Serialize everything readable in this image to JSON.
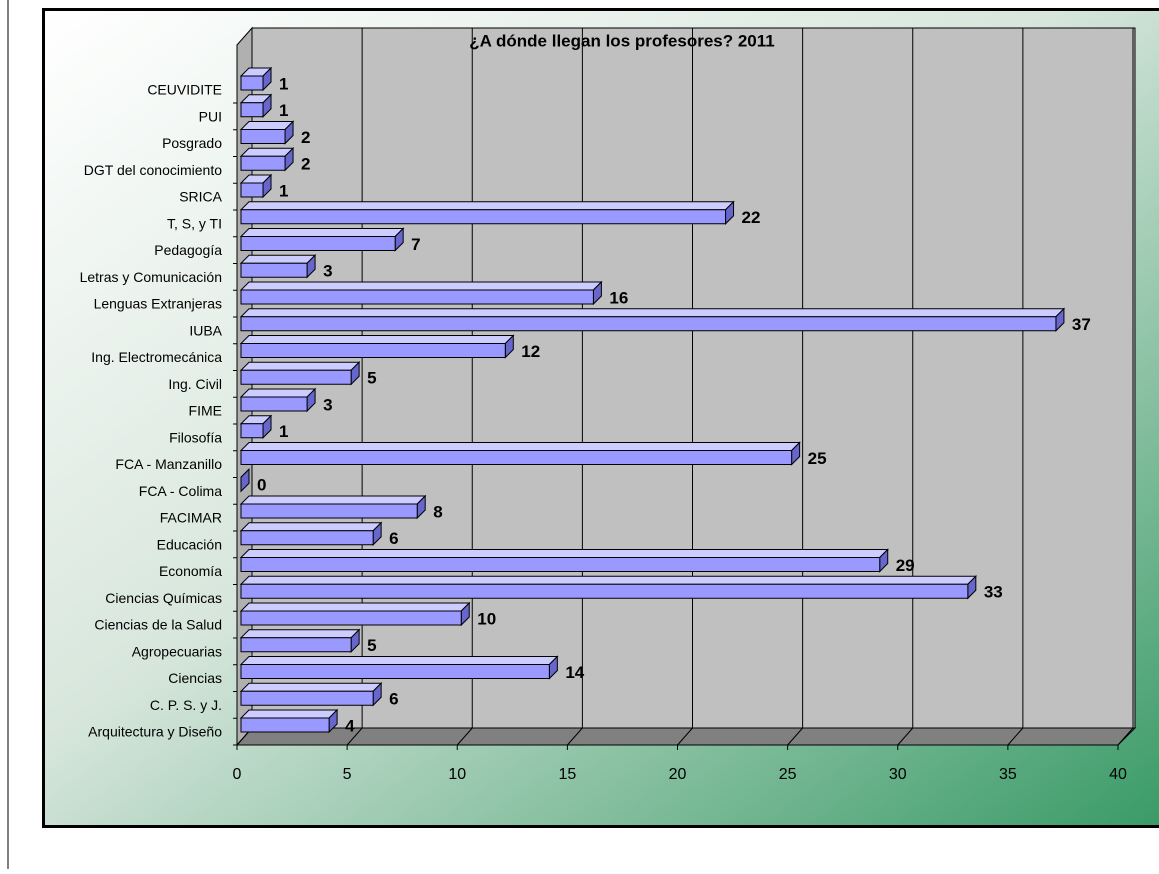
{
  "chart_data": {
    "type": "bar3d_horizontal",
    "title": "¿A dónde llegan los profesores? 2011",
    "categories": [
      "Arquitectura y Diseño",
      "C. P. S. y J.",
      "Ciencias",
      "Agropecuarias",
      "Ciencias de la Salud",
      "Ciencias Químicas",
      "Economía",
      "Educación",
      "FACIMAR",
      "FCA - Colima",
      "FCA - Manzanillo",
      "Filosofía",
      "FIME",
      "Ing. Civil",
      "Ing. Electromecánica",
      "IUBA",
      "Lenguas Extranjeras",
      "Letras y Comunicación",
      "Pedagogía",
      "T, S, y TI",
      "SRICA",
      "DGT del conocimiento",
      "Posgrado",
      "PUI",
      "CEUVIDITE"
    ],
    "values": [
      4,
      6,
      14,
      5,
      10,
      33,
      29,
      6,
      8,
      0,
      25,
      1,
      3,
      5,
      12,
      37,
      16,
      3,
      7,
      22,
      1,
      2,
      2,
      1,
      1
    ],
    "color": "#9999ff",
    "xlim": [
      0,
      40
    ],
    "xticks": [
      0,
      5,
      10,
      15,
      20,
      25,
      30,
      35,
      40
    ],
    "grid": true
  }
}
